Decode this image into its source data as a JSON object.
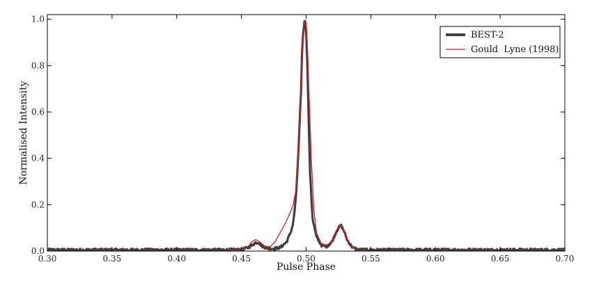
{
  "chart_data": {
    "type": "line",
    "xlabel": "Pulse Phase",
    "ylabel": "Normalised Intensity",
    "xlim": [
      0.3,
      0.7
    ],
    "ylim": [
      0.0,
      1.02
    ],
    "xticks": [
      "0.30",
      "0.35",
      "0.40",
      "0.45",
      "0.50",
      "0.55",
      "0.60",
      "0.65",
      "0.70"
    ],
    "yticks": [
      "0.0",
      "0.2",
      "0.4",
      "0.6",
      "0.8",
      "1.0"
    ],
    "grid": false,
    "legend": "top-right",
    "series": [
      {
        "name": "BEST-2",
        "color": "#404040",
        "style": "thick-noisy",
        "x": [
          0.3,
          0.32,
          0.34,
          0.36,
          0.38,
          0.4,
          0.42,
          0.44,
          0.45,
          0.455,
          0.458,
          0.461,
          0.463,
          0.466,
          0.47,
          0.475,
          0.48,
          0.485,
          0.488,
          0.49,
          0.492,
          0.494,
          0.496,
          0.497,
          0.498,
          0.499,
          0.5,
          0.501,
          0.502,
          0.503,
          0.505,
          0.508,
          0.512,
          0.516,
          0.52,
          0.523,
          0.525,
          0.527,
          0.529,
          0.532,
          0.536,
          0.54,
          0.55,
          0.57,
          0.6,
          0.63,
          0.66,
          0.69,
          0.7
        ],
        "y": [
          0.005,
          0.005,
          0.005,
          0.005,
          0.005,
          0.005,
          0.005,
          0.005,
          0.006,
          0.015,
          0.025,
          0.037,
          0.038,
          0.022,
          0.012,
          0.01,
          0.015,
          0.04,
          0.08,
          0.12,
          0.22,
          0.42,
          0.68,
          0.88,
          0.96,
          1.0,
          0.95,
          0.8,
          0.56,
          0.34,
          0.14,
          0.06,
          0.025,
          0.02,
          0.04,
          0.08,
          0.1,
          0.11,
          0.09,
          0.045,
          0.015,
          0.006,
          0.005,
          0.005,
          0.005,
          0.005,
          0.005,
          0.005,
          0.005
        ]
      },
      {
        "name": "Gould  Lyne (1998)",
        "color": "#d62020",
        "style": "thin",
        "x": [
          0.3,
          0.44,
          0.45,
          0.455,
          0.458,
          0.461,
          0.464,
          0.468,
          0.472,
          0.476,
          0.48,
          0.484,
          0.488,
          0.49,
          0.492,
          0.494,
          0.496,
          0.498,
          0.499,
          0.5,
          0.501,
          0.502,
          0.504,
          0.506,
          0.508,
          0.512,
          0.516,
          0.52,
          0.523,
          0.525,
          0.527,
          0.529,
          0.532,
          0.536,
          0.54,
          0.55,
          0.7
        ],
        "y": [
          0.0,
          0.0,
          0.003,
          0.018,
          0.04,
          0.05,
          0.04,
          0.022,
          0.018,
          0.04,
          0.08,
          0.12,
          0.17,
          0.2,
          0.26,
          0.43,
          0.7,
          0.96,
          1.0,
          0.99,
          0.9,
          0.72,
          0.4,
          0.18,
          0.08,
          0.03,
          0.025,
          0.045,
          0.085,
          0.105,
          0.11,
          0.09,
          0.05,
          0.018,
          0.003,
          0.0,
          0.0
        ]
      }
    ]
  }
}
